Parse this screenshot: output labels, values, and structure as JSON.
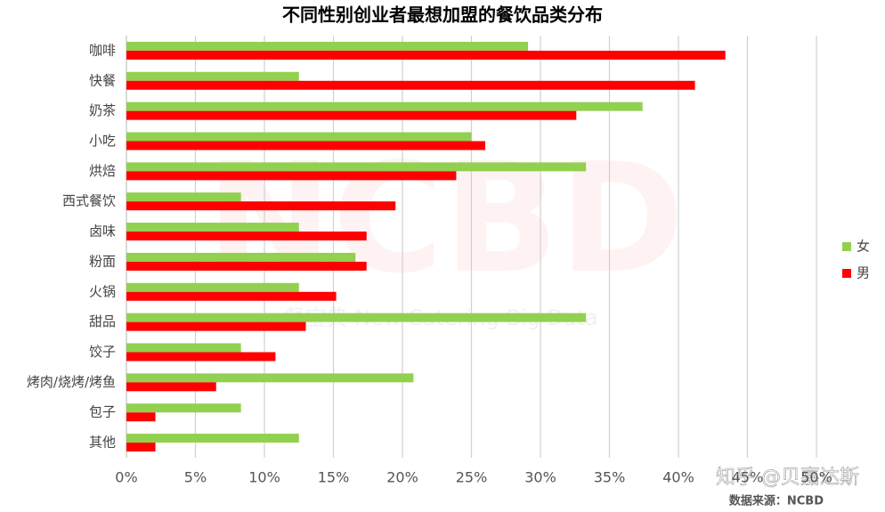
{
  "chart_data": {
    "type": "hbar",
    "title": "不同性别创业者最想加盟的餐饮品类分布",
    "categories": [
      "咖啡",
      "快餐",
      "奶茶",
      "小吃",
      "烘焙",
      "西式餐饮",
      "卤味",
      "粉面",
      "火锅",
      "甜品",
      "饺子",
      "烤肉/烧烤/烤鱼",
      "包子",
      "其他"
    ],
    "series": [
      {
        "name": "女",
        "color": "#92d050",
        "values": [
          29.1,
          12.5,
          37.4,
          25.0,
          33.3,
          8.3,
          12.5,
          16.6,
          12.5,
          33.3,
          8.3,
          20.8,
          8.3,
          12.5
        ]
      },
      {
        "name": "男",
        "color": "#ff0000",
        "values": [
          43.4,
          41.2,
          32.6,
          26.0,
          23.9,
          19.5,
          17.4,
          17.4,
          15.2,
          13.0,
          10.8,
          6.5,
          2.1,
          2.1
        ]
      }
    ],
    "xlim": [
      0,
      50
    ],
    "xticks": [
      {
        "value": 0,
        "label": "0%"
      },
      {
        "value": 5,
        "label": "5%"
      },
      {
        "value": 10,
        "label": "10%"
      },
      {
        "value": 15,
        "label": "15%"
      },
      {
        "value": 20,
        "label": "20%"
      },
      {
        "value": 25,
        "label": "25%"
      },
      {
        "value": 30,
        "label": "30%"
      },
      {
        "value": 35,
        "label": "35%"
      },
      {
        "value": 40,
        "label": "40%"
      },
      {
        "value": 45,
        "label": "45%"
      },
      {
        "value": 50,
        "label": "50%"
      }
    ],
    "grid": true,
    "legend": "right",
    "watermark": "NCBD",
    "watermark_caption": "餐宝典 New Catering Big Data",
    "source": "数据来源：NCBD",
    "credit": "知乎 @贝嘉达斯"
  }
}
